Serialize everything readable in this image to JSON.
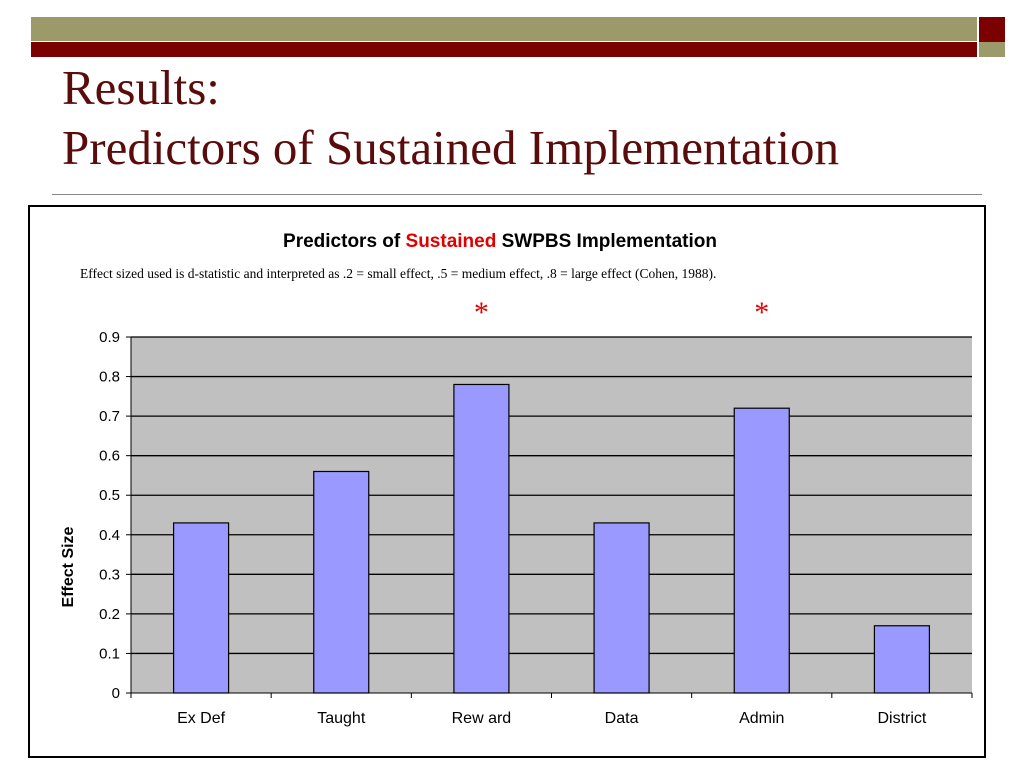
{
  "slide": {
    "title_line1": "Results:",
    "title_line2": "Predictors of Sustained Implementation"
  },
  "colors": {
    "title": "#5a0b0b",
    "accent_red": "#e00000",
    "olive": "#9c9a6a",
    "maroon": "#7b0000",
    "bar_fill": "#9999ff",
    "plot_bg": "#c0c0c0"
  },
  "chart_data": {
    "type": "bar",
    "title_parts": [
      "Predictors of ",
      "Sustained",
      " SWPBS Implementation"
    ],
    "subtitle": "Effect sized used is d-statistic and interpreted as .2 = small effect, .5 = medium effect, .8 = large effect (Cohen, 1988).",
    "categories": [
      "Ex Def",
      "Taught",
      "Rew ard",
      "Data",
      "Admin",
      "District"
    ],
    "values": [
      0.43,
      0.56,
      0.78,
      0.43,
      0.72,
      0.17
    ],
    "significant": [
      false,
      false,
      true,
      false,
      true,
      false
    ],
    "significance_marker": "*",
    "ylabel": "Effect Size",
    "xlabel": "",
    "ylim": [
      0,
      0.9
    ],
    "yticks": [
      "0",
      "0.1",
      "0.2",
      "0.3",
      "0.4",
      "0.5",
      "0.6",
      "0.7",
      "0.8",
      "0.9"
    ],
    "grid": true,
    "legend": "none"
  }
}
